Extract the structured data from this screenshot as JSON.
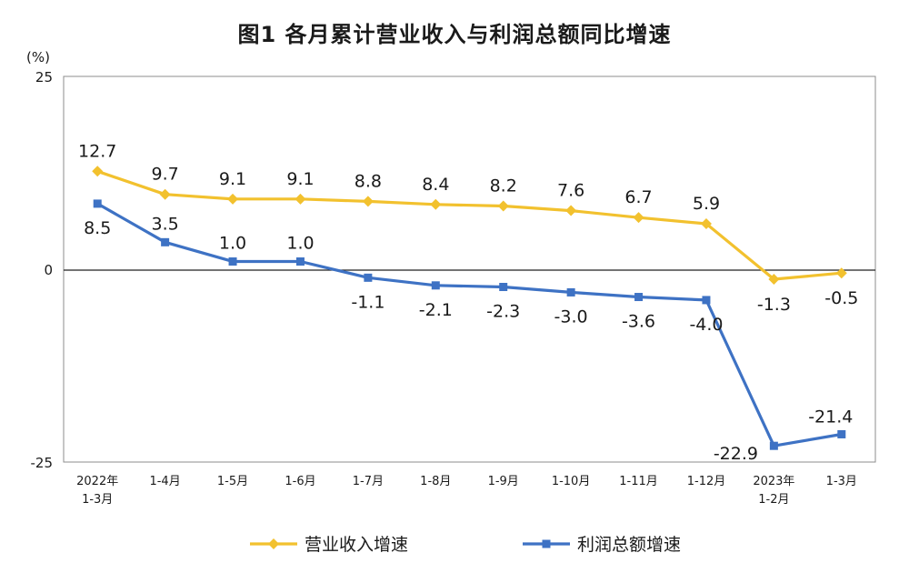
{
  "chart_data": {
    "type": "line",
    "title": "图1  各月累计营业收入与利润总额同比增速",
    "ylabel": "(%)",
    "ylim": [
      -25,
      25
    ],
    "yticks": [
      "25",
      "0",
      "-25"
    ],
    "grid": false,
    "legend_position": "bottom",
    "categories": [
      [
        "2022年",
        "1-3月"
      ],
      [
        "1-4月"
      ],
      [
        "1-5月"
      ],
      [
        "1-6月"
      ],
      [
        "1-7月"
      ],
      [
        "1-8月"
      ],
      [
        "1-9月"
      ],
      [
        "1-10月"
      ],
      [
        "1-11月"
      ],
      [
        "1-12月"
      ],
      [
        "2023年",
        "1-2月"
      ],
      [
        "1-3月"
      ]
    ],
    "series": [
      {
        "name": "营业收入增速",
        "color": "#F2C12E",
        "marker": "diamond",
        "values": [
          12.7,
          9.7,
          9.1,
          9.1,
          8.8,
          8.4,
          8.2,
          7.6,
          6.7,
          5.9,
          -1.3,
          -0.5
        ],
        "labels": [
          "12.7",
          "9.7",
          "9.1",
          "9.1",
          "8.8",
          "8.4",
          "8.2",
          "7.6",
          "6.7",
          "5.9",
          "-1.3",
          "-0.5"
        ]
      },
      {
        "name": "利润总额增速",
        "color": "#3E72C4",
        "marker": "square",
        "values": [
          8.5,
          3.5,
          1.0,
          1.0,
          -1.1,
          -2.1,
          -2.3,
          -3.0,
          -3.6,
          -4.0,
          -22.9,
          -21.4
        ],
        "labels": [
          "8.5",
          "3.5",
          "1.0",
          "1.0",
          "-1.1",
          "-2.1",
          "-2.3",
          "-3.0",
          "-3.6",
          "-4.0",
          "-22.9",
          "-21.4"
        ]
      }
    ]
  }
}
